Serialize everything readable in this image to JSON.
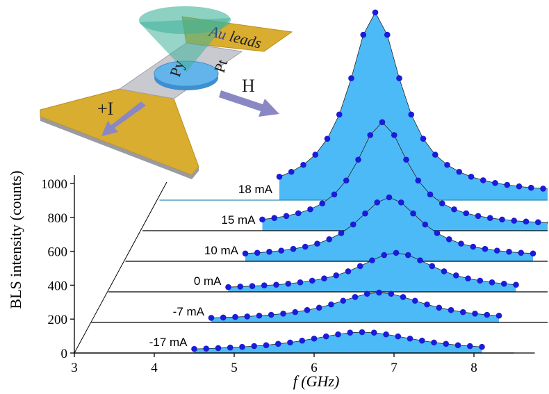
{
  "chart_data": {
    "type": "waterfall",
    "ylabel": "BLS intensity (counts)",
    "xlabel": "f (GHz)",
    "xlim": [
      3,
      8.5
    ],
    "xticks": [
      3,
      4,
      5,
      6,
      7,
      8
    ],
    "ylim": [
      0,
      1050
    ],
    "yticks": [
      0,
      200,
      400,
      600,
      800,
      1000
    ],
    "fill": "#4dbaf8",
    "x": [
      4.5,
      4.65,
      4.8,
      4.95,
      5.1,
      5.25,
      5.4,
      5.55,
      5.7,
      5.85,
      6.0,
      6.15,
      6.3,
      6.45,
      6.6,
      6.75,
      6.9,
      7.05,
      7.2,
      7.35,
      7.5,
      7.65,
      7.8,
      7.95,
      8.1
    ],
    "series": [
      {
        "name": "18 mA",
        "color": "#1b1bd8",
        "values": [
          138,
          167,
          208,
          268,
          362,
          505,
          719,
          975,
          1107,
          975,
          719,
          505,
          362,
          268,
          208,
          167,
          138,
          117,
          101,
          90,
          81,
          73,
          68,
          63,
          59
        ]
      },
      {
        "name": "15 mA",
        "color": "#1b1bd8",
        "values": [
          66,
          75,
          87,
          103,
          126,
          161,
          214,
          296,
          419,
          564,
          640,
          564,
          419,
          296,
          214,
          161,
          126,
          103,
          87,
          75,
          66,
          59,
          54,
          50,
          47
        ]
      },
      {
        "name": "10 mA",
        "color": "#1b1bd8",
        "values": [
          46,
          50,
          56,
          63,
          73,
          86,
          104,
          130,
          166,
          217,
          282,
          347,
          377,
          347,
          282,
          217,
          166,
          130,
          104,
          86,
          73,
          63,
          56,
          50,
          46
        ]
      },
      {
        "name": "0 mA",
        "color": "#1b1bd8",
        "values": [
          28,
          31,
          34,
          38,
          42,
          48,
          56,
          66,
          79,
          97,
          121,
          152,
          186,
          217,
          230,
          217,
          186,
          152,
          121,
          97,
          79,
          66,
          56,
          48,
          42
        ]
      },
      {
        "name": "-7 mA",
        "color": "#1b1bd8",
        "values": [
          27,
          29,
          32,
          35,
          40,
          45,
          52,
          61,
          73,
          87,
          106,
          128,
          150,
          169,
          176,
          169,
          150,
          128,
          106,
          87,
          73,
          61,
          52,
          45,
          40
        ]
      },
      {
        "name": "-17 mA",
        "color": "#1b1bd8",
        "values": [
          24,
          26,
          29,
          32,
          36,
          41,
          46,
          54,
          62,
          73,
          85,
          98,
          110,
          120,
          123,
          120,
          110,
          98,
          85,
          73,
          62,
          54,
          46,
          41,
          36
        ]
      }
    ]
  },
  "inset": {
    "au": "Au",
    "leads": "leads",
    "py": "Py",
    "pt": "Pt",
    "current": "+I",
    "field": "H"
  }
}
